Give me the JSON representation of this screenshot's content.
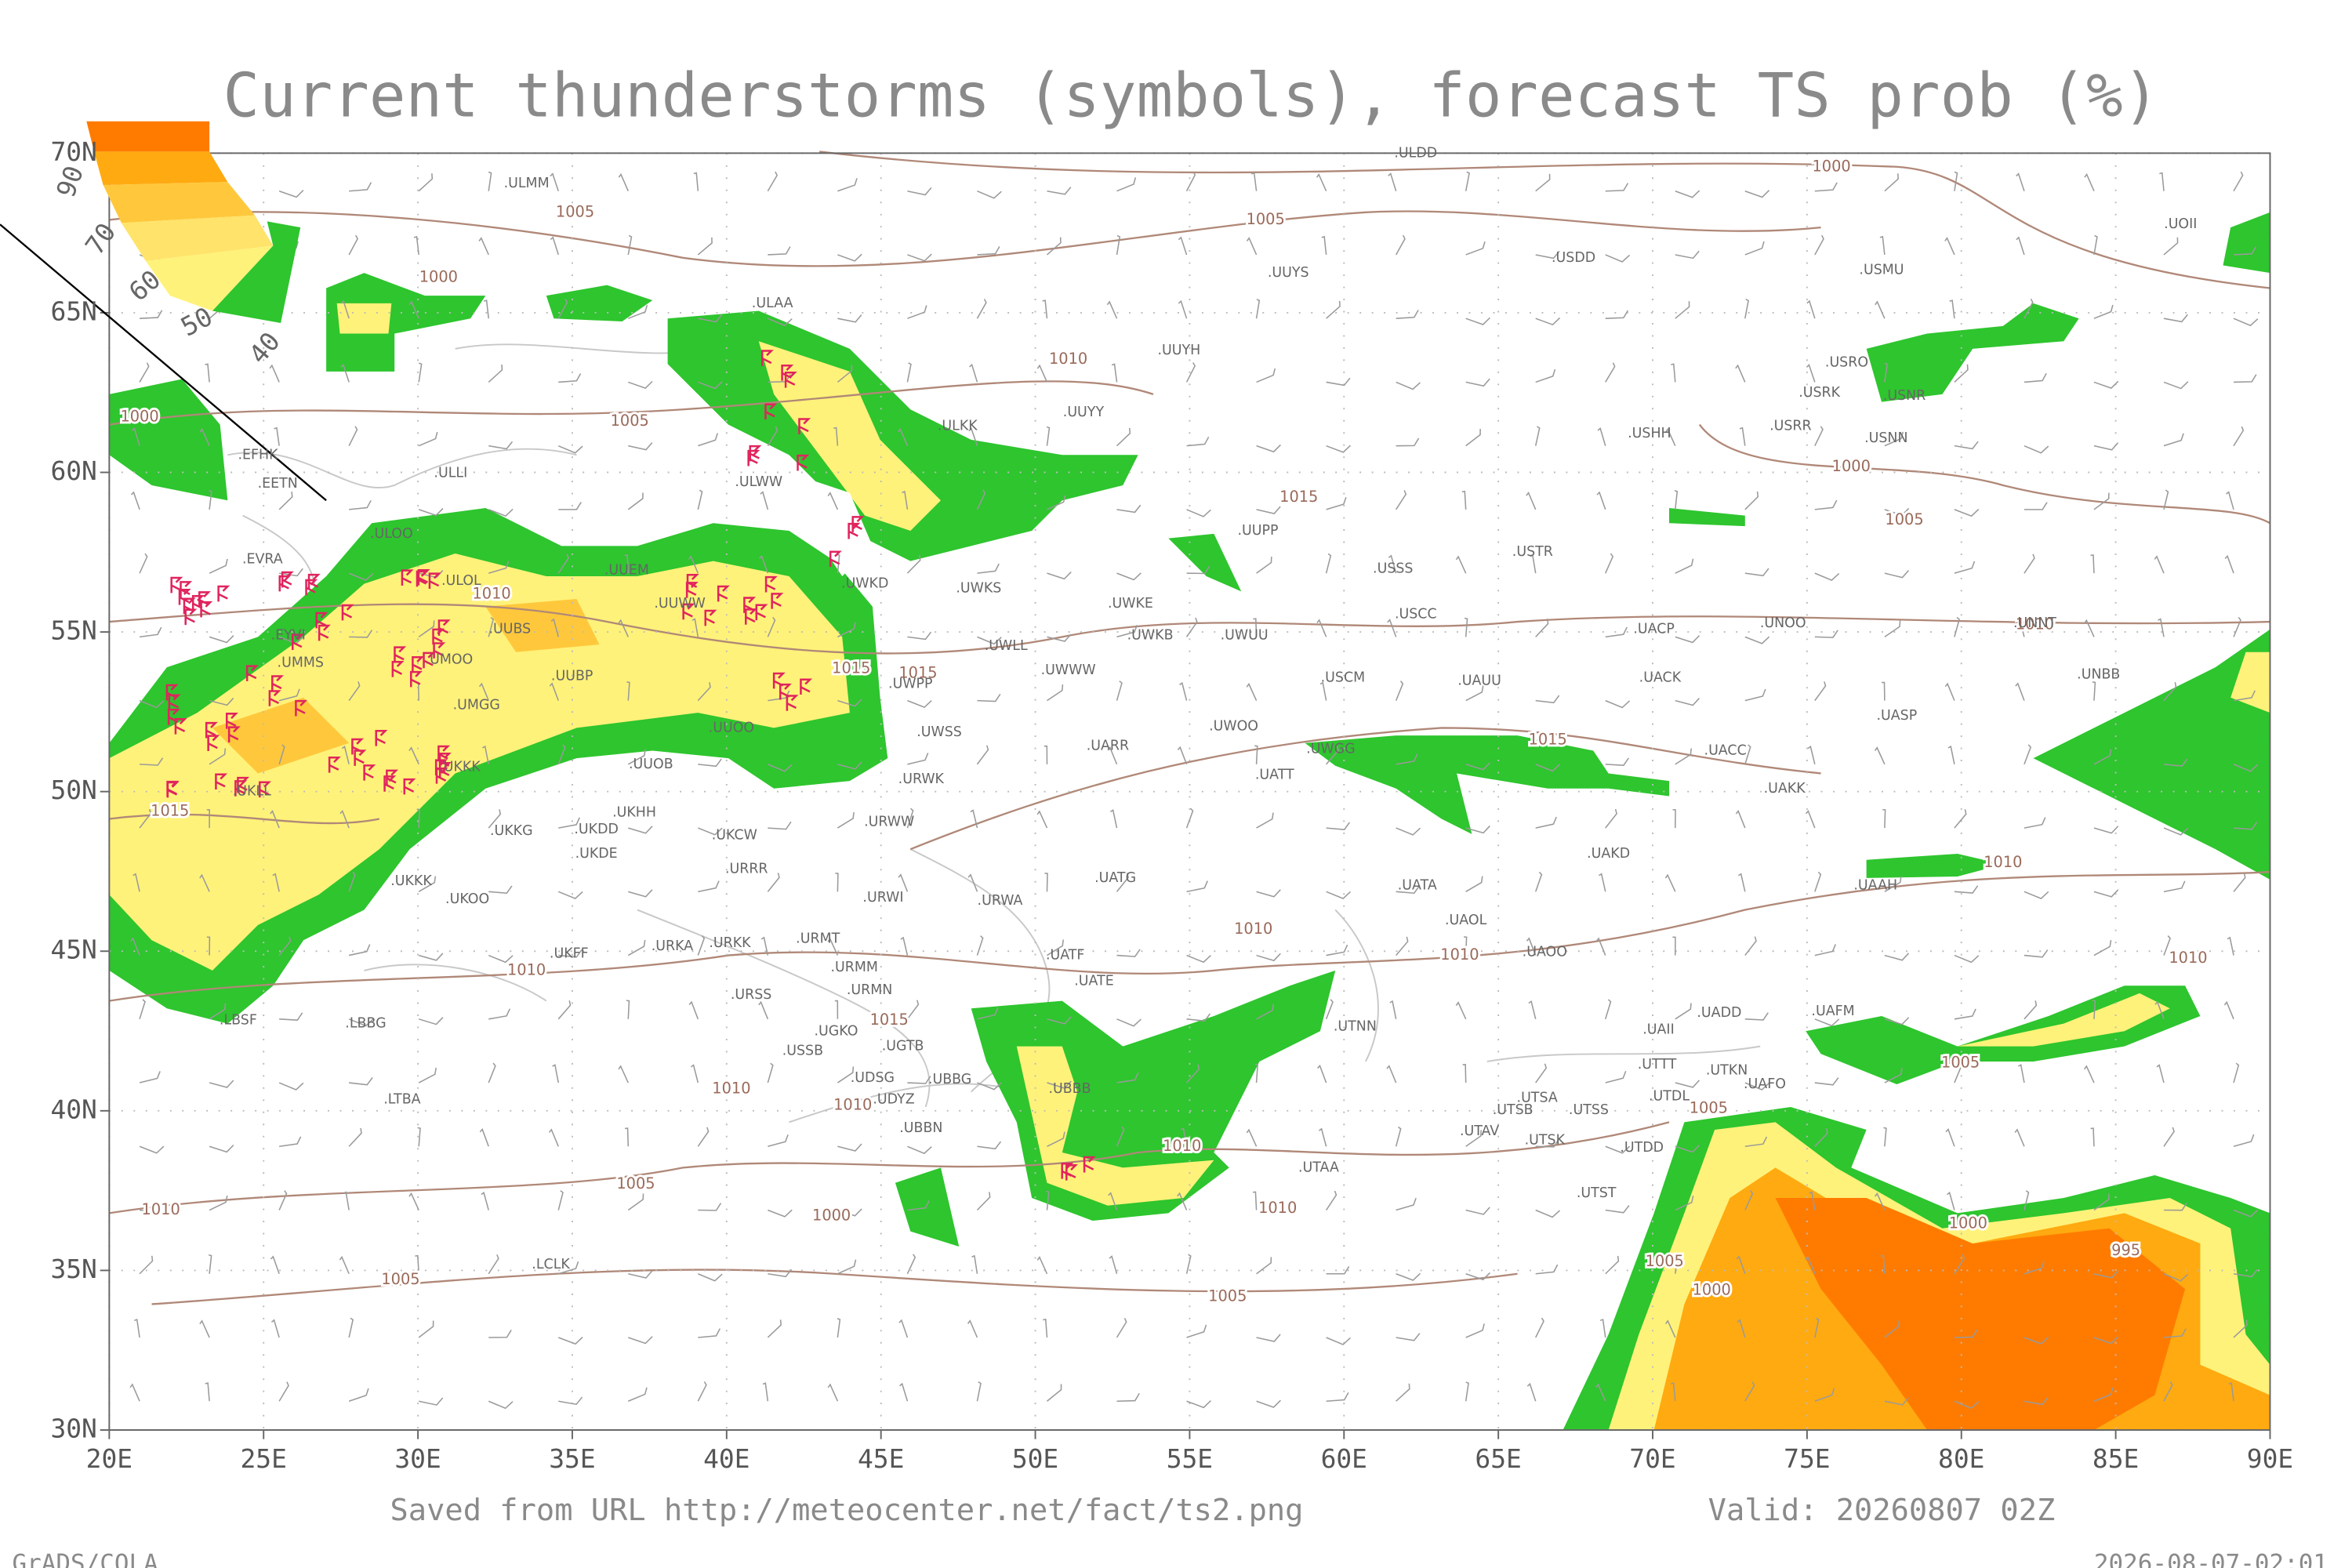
{
  "header": {
    "title": "Current thunderstorms (symbols), forecast TS prob (%)"
  },
  "map": {
    "lat_ticks": [
      {
        "value": 30,
        "label": "30N"
      },
      {
        "value": 35,
        "label": "35N"
      },
      {
        "value": 40,
        "label": "40N"
      },
      {
        "value": 45,
        "label": "45N"
      },
      {
        "value": 50,
        "label": "50N"
      },
      {
        "value": 55,
        "label": "55N"
      },
      {
        "value": 60,
        "label": "60N"
      },
      {
        "value": 65,
        "label": "65N"
      },
      {
        "value": 70,
        "label": "70N"
      }
    ],
    "lon_ticks": [
      {
        "value": 20,
        "label": "20E"
      },
      {
        "value": 25,
        "label": "25E"
      },
      {
        "value": 30,
        "label": "30E"
      },
      {
        "value": 35,
        "label": "35E"
      },
      {
        "value": 40,
        "label": "40E"
      },
      {
        "value": 45,
        "label": "45E"
      },
      {
        "value": 50,
        "label": "50E"
      },
      {
        "value": 55,
        "label": "55E"
      },
      {
        "value": 60,
        "label": "60E"
      },
      {
        "value": 65,
        "label": "65E"
      },
      {
        "value": 70,
        "label": "70E"
      },
      {
        "value": 75,
        "label": "75E"
      },
      {
        "value": 80,
        "label": "80E"
      },
      {
        "value": 85,
        "label": "85E"
      },
      {
        "value": 90,
        "label": "90E"
      }
    ],
    "legend_labels": [
      "90",
      "70",
      "60",
      "50",
      "40"
    ],
    "isobar_labels": [
      "1005",
      "1005",
      "1000",
      "1000",
      "1010",
      "1000",
      "1005",
      "1000",
      "1015",
      "1005",
      "1010",
      "1015",
      "1015",
      "1010",
      "1015",
      "1015",
      "1010",
      "1010",
      "1010",
      "1010",
      "1010",
      "1015",
      "1005",
      "1010",
      "1010",
      "1005",
      "1010",
      "1005",
      "1000",
      "1010",
      "1010",
      "1000",
      "995",
      "1005",
      "1000",
      "1005",
      "1005"
    ],
    "stations": [
      ".ULDD",
      ".ULMM",
      ".USDD",
      ".UUYS",
      ".USMU",
      ".UOII",
      ".ULAA",
      ".UUYH",
      ".USRO",
      ".USRK",
      ".USNR",
      ".UUYY",
      ".ULKK",
      ".USHH",
      ".USRR",
      ".USNN",
      ".EFHK",
      ".EETN",
      ".ULLI",
      ".ULWW",
      ".UUPP",
      ".EVRA",
      ".ULOO",
      ".UUEM",
      ".ULOL",
      ".USTR",
      ".UWKS",
      ".UUWW",
      ".UWKE",
      ".UWKD",
      ".USSS",
      ".UUBS",
      ".UWKB",
      ".UWUU",
      ".USCC",
      ".UACP",
      ".UNOO",
      ".UNNT",
      ".EYVI",
      ".UMMS",
      ".UMOO",
      ".UWLL",
      ".UWWW",
      ".UUBP",
      ".UWPP",
      ".USCM",
      ".UAUU",
      ".UACK",
      ".UNBB",
      ".UMGG",
      ".UASP",
      ".UUOO",
      ".UWSS",
      ".UARR",
      ".UWOO",
      ".UACC",
      ".UKKK",
      ".UUOB",
      ".UWGG",
      ".UATT",
      ".UKLL",
      ".URWK",
      ".UAKK",
      ".UKHH",
      ".UKKG",
      ".UKDD",
      ".URWW",
      ".UKCW",
      ".UKDE",
      ".UAKD",
      ".URRR",
      ".UATG",
      ".UATA",
      ".UAAH",
      ".UKKK",
      ".UKOO",
      ".URWI",
      ".URWA",
      ".UAOL",
      ".UKFF",
      ".URKA",
      ".URKK",
      ".URMT",
      ".UAOO",
      ".UATF",
      ".URMM",
      ".UATE",
      ".URMN",
      ".URSS",
      ".UADD",
      ".UAFM",
      ".LBSF",
      ".LBBG",
      ".UGKO",
      ".UTNN",
      ".UAII",
      ".UGTB",
      ".UTTT",
      ".USSB",
      ".UTKN",
      ".UAFO",
      ".LTBA",
      ".UDSG",
      ".UBBG",
      ".UBBB",
      ".UDYZ",
      ".UTDL",
      ".UTSA",
      ".UTSB",
      ".UTSS",
      ".UBBN",
      ".UTAV",
      ".UTSK",
      ".UTDD",
      ".UTAA",
      ".UTST",
      ".LCLK"
    ]
  },
  "footer": {
    "source": "Saved from URL http://meteocenter.net/fact/ts2.png",
    "valid": "Valid: 20260807 02Z",
    "software": "GrADS/COLA",
    "timestamp": "2026-08-07-02:01"
  }
}
